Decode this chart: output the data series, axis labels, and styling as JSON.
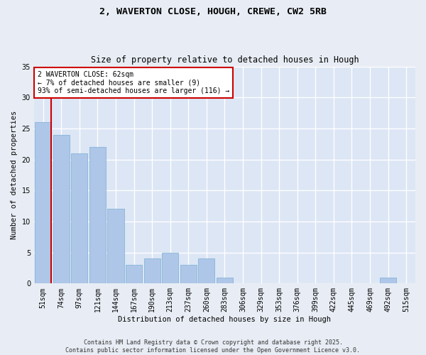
{
  "title1": "2, WAVERTON CLOSE, HOUGH, CREWE, CW2 5RB",
  "title2": "Size of property relative to detached houses in Hough",
  "xlabel": "Distribution of detached houses by size in Hough",
  "ylabel": "Number of detached properties",
  "categories": [
    "51sqm",
    "74sqm",
    "97sqm",
    "121sqm",
    "144sqm",
    "167sqm",
    "190sqm",
    "213sqm",
    "237sqm",
    "260sqm",
    "283sqm",
    "306sqm",
    "329sqm",
    "353sqm",
    "376sqm",
    "399sqm",
    "422sqm",
    "445sqm",
    "469sqm",
    "492sqm",
    "515sqm"
  ],
  "values": [
    26,
    24,
    21,
    22,
    12,
    3,
    4,
    5,
    3,
    4,
    1,
    0,
    0,
    0,
    0,
    0,
    0,
    0,
    0,
    1,
    0
  ],
  "bar_color": "#aec6e8",
  "bar_edge_color": "#7aafd4",
  "highlight_line_color": "#cc0000",
  "annotation_text": "2 WAVERTON CLOSE: 62sqm\n← 7% of detached houses are smaller (9)\n93% of semi-detached houses are larger (116) →",
  "annotation_box_color": "#cc0000",
  "ylim": [
    0,
    35
  ],
  "bg_color": "#dce6f5",
  "grid_color": "#ffffff",
  "fig_bg_color": "#e8edf5",
  "footer1": "Contains HM Land Registry data © Crown copyright and database right 2025.",
  "footer2": "Contains public sector information licensed under the Open Government Licence v3.0."
}
